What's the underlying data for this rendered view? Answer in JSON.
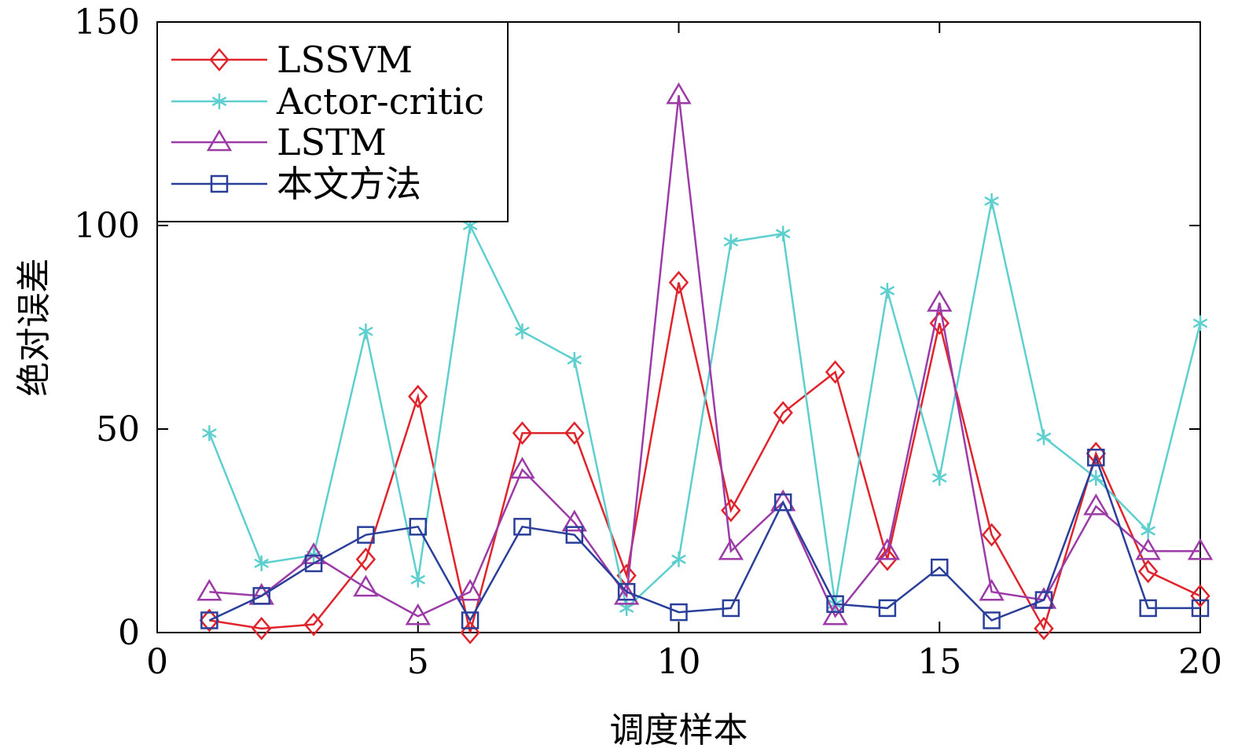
{
  "chart_data": {
    "type": "line",
    "title": "",
    "xlabel": "调度样本",
    "ylabel": "绝对误差",
    "xlim": [
      0,
      20
    ],
    "ylim": [
      0,
      150
    ],
    "xticks": [
      0,
      5,
      10,
      15,
      20
    ],
    "yticks": [
      0,
      50,
      100,
      150
    ],
    "xtick_labels": [
      "0",
      "5",
      "10",
      "15",
      "20"
    ],
    "ytick_labels": [
      "0",
      "50",
      "100",
      "150"
    ],
    "grid": false,
    "legend_position": "top-left",
    "x": [
      1,
      2,
      3,
      4,
      5,
      6,
      7,
      8,
      9,
      10,
      11,
      12,
      13,
      14,
      15,
      16,
      17,
      18,
      19,
      20
    ],
    "series": [
      {
        "name": "LSSVM",
        "color": "#e0242b",
        "marker": "diamond",
        "values": [
          3,
          1,
          2,
          18,
          58,
          0,
          49,
          49,
          14,
          86,
          30,
          54,
          64,
          18,
          76,
          24,
          1,
          44,
          15,
          9
        ]
      },
      {
        "name": "Actor-critic",
        "color": "#5ecfcf",
        "marker": "asterisk",
        "values": [
          49,
          17,
          19,
          74,
          13,
          100,
          74,
          67,
          6,
          18,
          96,
          98,
          7,
          84,
          38,
          106,
          48,
          38,
          25,
          76
        ]
      },
      {
        "name": "LSTM",
        "color": "#9c3ba8",
        "marker": "triangle",
        "values": [
          10,
          9,
          19,
          11,
          4,
          10,
          40,
          27,
          9,
          132,
          20,
          32,
          4,
          20,
          81,
          10,
          8,
          31,
          20,
          20
        ]
      },
      {
        "name": "本文方法",
        "color": "#2a3f9a",
        "marker": "square",
        "values": [
          3,
          9,
          17,
          24,
          26,
          3,
          26,
          24,
          10,
          5,
          6,
          32,
          7,
          6,
          16,
          3,
          8,
          43,
          6,
          6
        ]
      }
    ]
  }
}
